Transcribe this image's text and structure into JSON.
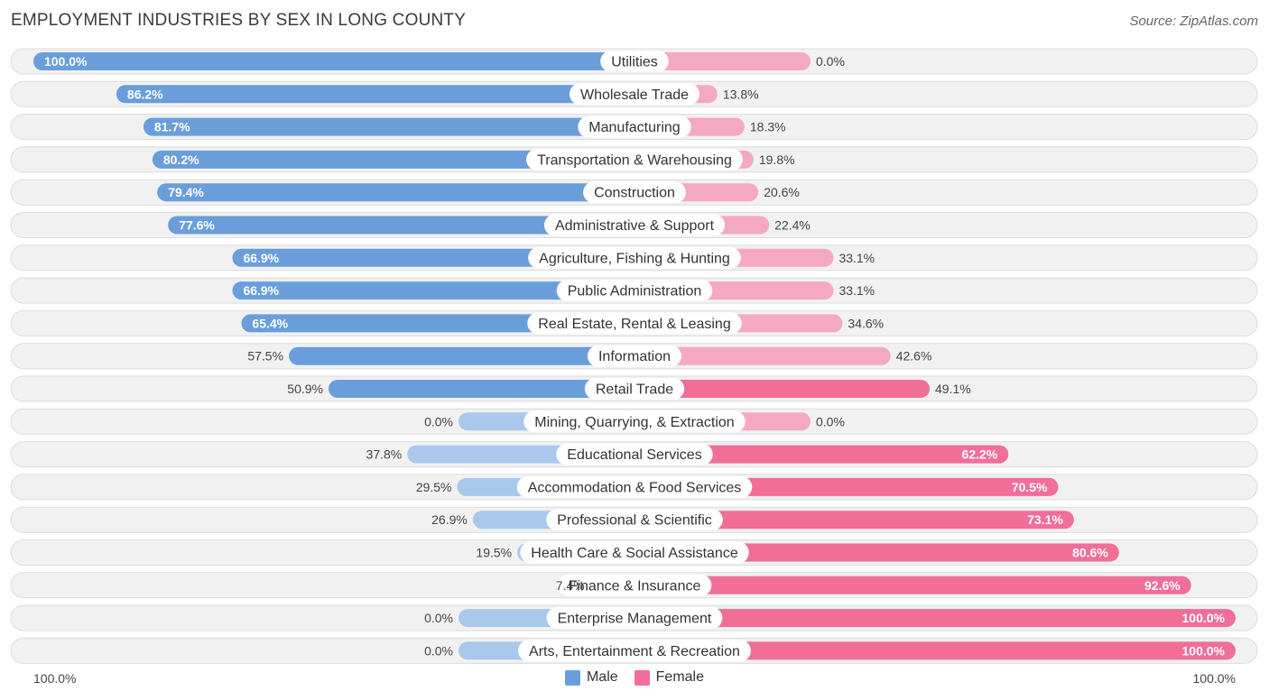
{
  "title": "EMPLOYMENT INDUSTRIES BY SEX IN LONG COUNTY",
  "source": "Source: ZipAtlas.com",
  "colors": {
    "male_strong": "#6a9edb",
    "male_light": "#a9c8ec",
    "female_strong": "#f06e98",
    "female_light": "#f5a8c2",
    "row_bg": "#f1f1f1",
    "row_border": "#dcdcdc"
  },
  "axis": {
    "left_label": "100.0%",
    "right_label": "100.0%"
  },
  "legend": {
    "male": "Male",
    "female": "Female"
  },
  "chart_data": {
    "type": "bar",
    "orientation": "horizontal-diverging",
    "title": "EMPLOYMENT INDUSTRIES BY SEX IN LONG COUNTY",
    "xlim": [
      -100,
      100
    ],
    "categories": [
      "Utilities",
      "Wholesale Trade",
      "Manufacturing",
      "Transportation & Warehousing",
      "Construction",
      "Administrative & Support",
      "Agriculture, Fishing & Hunting",
      "Public Administration",
      "Real Estate, Rental & Leasing",
      "Information",
      "Retail Trade",
      "Mining, Quarrying, & Extraction",
      "Educational Services",
      "Accommodation & Food Services",
      "Professional & Scientific",
      "Health Care & Social Assistance",
      "Finance & Insurance",
      "Enterprise Management",
      "Arts, Entertainment & Recreation"
    ],
    "series": [
      {
        "name": "Male",
        "values": [
          100.0,
          86.2,
          81.7,
          80.2,
          79.4,
          77.6,
          66.9,
          66.9,
          65.4,
          57.5,
          50.9,
          0.0,
          37.8,
          29.5,
          26.9,
          19.5,
          7.4,
          0.0,
          0.0
        ],
        "labels": [
          "100.0%",
          "86.2%",
          "81.7%",
          "80.2%",
          "79.4%",
          "77.6%",
          "66.9%",
          "66.9%",
          "65.4%",
          "57.5%",
          "50.9%",
          "0.0%",
          "37.8%",
          "29.5%",
          "26.9%",
          "19.5%",
          "7.4%",
          "0.0%",
          "0.0%"
        ]
      },
      {
        "name": "Female",
        "values": [
          0.0,
          13.8,
          18.3,
          19.8,
          20.6,
          22.4,
          33.1,
          33.1,
          34.6,
          42.6,
          49.1,
          0.0,
          62.2,
          70.5,
          73.1,
          80.6,
          92.6,
          100.0,
          100.0
        ],
        "labels": [
          "0.0%",
          "13.8%",
          "18.3%",
          "19.8%",
          "20.6%",
          "22.4%",
          "33.1%",
          "33.1%",
          "34.6%",
          "42.6%",
          "49.1%",
          "0.0%",
          "62.2%",
          "70.5%",
          "73.1%",
          "80.6%",
          "92.6%",
          "100.0%",
          "100.0%"
        ]
      }
    ]
  }
}
